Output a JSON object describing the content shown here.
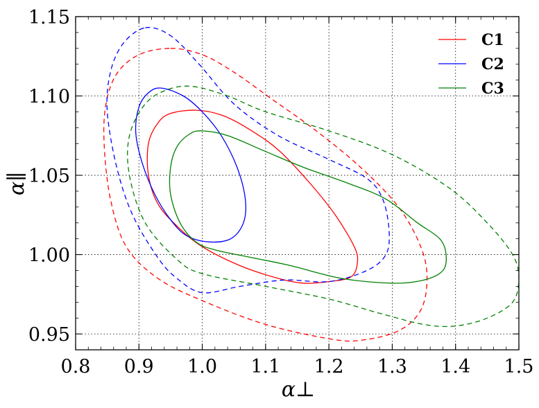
{
  "chart_data": {
    "type": "line",
    "title": "",
    "xlabel": "α⊥",
    "ylabel": "α∥",
    "xlim": [
      0.8,
      1.5
    ],
    "ylim": [
      0.94,
      1.15
    ],
    "x_ticks": [
      "0.8",
      "0.9",
      "1.0",
      "1.1",
      "1.2",
      "1.3",
      "1.4",
      "1.5"
    ],
    "y_ticks": [
      "0.95",
      "1.00",
      "1.05",
      "1.10",
      "1.15"
    ],
    "grid": true,
    "legend_position": "top-right",
    "series": [
      {
        "name": "C1",
        "color": "#ff0000",
        "contours": [
          {
            "level": "inner",
            "style": "solid",
            "points": [
              [
                0.99,
                1.091
              ],
              [
                1.03,
                1.088
              ],
              [
                1.07,
                1.08
              ],
              [
                1.12,
                1.066
              ],
              [
                1.17,
                1.045
              ],
              [
                1.21,
                1.025
              ],
              [
                1.24,
                1.005
              ],
              [
                1.245,
                0.995
              ],
              [
                1.235,
                0.986
              ],
              [
                1.2,
                0.983
              ],
              [
                1.16,
                0.982
              ],
              [
                1.12,
                0.985
              ],
              [
                1.06,
                0.993
              ],
              [
                1.0,
                1.005
              ],
              [
                0.96,
                1.018
              ],
              [
                0.93,
                1.032
              ],
              [
                0.915,
                1.05
              ],
              [
                0.915,
                1.07
              ],
              [
                0.93,
                1.083
              ],
              [
                0.95,
                1.089
              ],
              [
                0.99,
                1.091
              ]
            ]
          },
          {
            "level": "outer",
            "style": "dashed",
            "points": [
              [
                0.95,
                1.13
              ],
              [
                1.0,
                1.126
              ],
              [
                1.05,
                1.115
              ],
              [
                1.11,
                1.098
              ],
              [
                1.18,
                1.078
              ],
              [
                1.25,
                1.055
              ],
              [
                1.31,
                1.03
              ],
              [
                1.345,
                1.005
              ],
              [
                1.355,
                0.985
              ],
              [
                1.345,
                0.965
              ],
              [
                1.31,
                0.952
              ],
              [
                1.25,
                0.946
              ],
              [
                1.2,
                0.947
              ],
              [
                1.1,
                0.956
              ],
              [
                1.0,
                0.971
              ],
              [
                0.93,
                0.985
              ],
              [
                0.88,
                1.005
              ],
              [
                0.855,
                1.035
              ],
              [
                0.845,
                1.07
              ],
              [
                0.848,
                1.095
              ],
              [
                0.865,
                1.114
              ],
              [
                0.9,
                1.126
              ],
              [
                0.95,
                1.13
              ]
            ]
          }
        ]
      },
      {
        "name": "C2",
        "color": "#0000ff",
        "contours": [
          {
            "level": "inner",
            "style": "solid",
            "points": [
              [
                0.935,
                1.105
              ],
              [
                0.97,
                1.1
              ],
              [
                1.0,
                1.09
              ],
              [
                1.03,
                1.075
              ],
              [
                1.055,
                1.055
              ],
              [
                1.068,
                1.035
              ],
              [
                1.065,
                1.02
              ],
              [
                1.045,
                1.01
              ],
              [
                1.01,
                1.008
              ],
              [
                0.975,
                1.012
              ],
              [
                0.95,
                1.022
              ],
              [
                0.925,
                1.038
              ],
              [
                0.905,
                1.058
              ],
              [
                0.895,
                1.077
              ],
              [
                0.9,
                1.093
              ],
              [
                0.915,
                1.102
              ],
              [
                0.935,
                1.105
              ]
            ]
          },
          {
            "level": "outer",
            "style": "dashed",
            "points": [
              [
                0.91,
                1.143
              ],
              [
                0.95,
                1.138
              ],
              [
                0.995,
                1.12
              ],
              [
                1.05,
                1.095
              ],
              [
                1.12,
                1.075
              ],
              [
                1.2,
                1.06
              ],
              [
                1.26,
                1.048
              ],
              [
                1.285,
                1.035
              ],
              [
                1.295,
                1.015
              ],
              [
                1.29,
                1.0
              ],
              [
                1.26,
                0.99
              ],
              [
                1.2,
                0.983
              ],
              [
                1.13,
                0.984
              ],
              [
                1.06,
                0.98
              ],
              [
                1.0,
                0.976
              ],
              [
                0.96,
                0.985
              ],
              [
                0.93,
                0.998
              ],
              [
                0.89,
                1.025
              ],
              [
                0.865,
                1.055
              ],
              [
                0.85,
                1.09
              ],
              [
                0.855,
                1.115
              ],
              [
                0.875,
                1.133
              ],
              [
                0.91,
                1.143
              ]
            ]
          }
        ]
      },
      {
        "name": "C3",
        "color": "#008000",
        "contours": [
          {
            "level": "inner",
            "style": "solid",
            "points": [
              [
                1.0,
                1.078
              ],
              [
                1.04,
                1.075
              ],
              [
                1.1,
                1.065
              ],
              [
                1.16,
                1.055
              ],
              [
                1.23,
                1.045
              ],
              [
                1.29,
                1.035
              ],
              [
                1.34,
                1.02
              ],
              [
                1.375,
                1.01
              ],
              [
                1.385,
                1.0
              ],
              [
                1.38,
                0.99
              ],
              [
                1.35,
                0.984
              ],
              [
                1.3,
                0.982
              ],
              [
                1.22,
                0.985
              ],
              [
                1.14,
                0.993
              ],
              [
                1.08,
                0.998
              ],
              [
                1.02,
                1.003
              ],
              [
                0.99,
                1.008
              ],
              [
                0.965,
                1.02
              ],
              [
                0.95,
                1.038
              ],
              [
                0.95,
                1.055
              ],
              [
                0.96,
                1.068
              ],
              [
                0.98,
                1.076
              ],
              [
                1.0,
                1.078
              ]
            ]
          },
          {
            "level": "outer",
            "style": "dashed",
            "points": [
              [
                0.985,
                1.106
              ],
              [
                1.04,
                1.1
              ],
              [
                1.1,
                1.09
              ],
              [
                1.2,
                1.078
              ],
              [
                1.3,
                1.063
              ],
              [
                1.39,
                1.042
              ],
              [
                1.45,
                1.02
              ],
              [
                1.49,
                1.0
              ],
              [
                1.5,
                0.985
              ],
              [
                1.49,
                0.97
              ],
              [
                1.45,
                0.96
              ],
              [
                1.4,
                0.955
              ],
              [
                1.35,
                0.956
              ],
              [
                1.28,
                0.963
              ],
              [
                1.2,
                0.972
              ],
              [
                1.1,
                0.98
              ],
              [
                1.0,
                0.988
              ],
              [
                0.96,
                0.997
              ],
              [
                0.91,
                1.02
              ],
              [
                0.885,
                1.05
              ],
              [
                0.885,
                1.075
              ],
              [
                0.91,
                1.095
              ],
              [
                0.945,
                1.104
              ],
              [
                0.985,
                1.106
              ]
            ]
          }
        ]
      }
    ]
  }
}
